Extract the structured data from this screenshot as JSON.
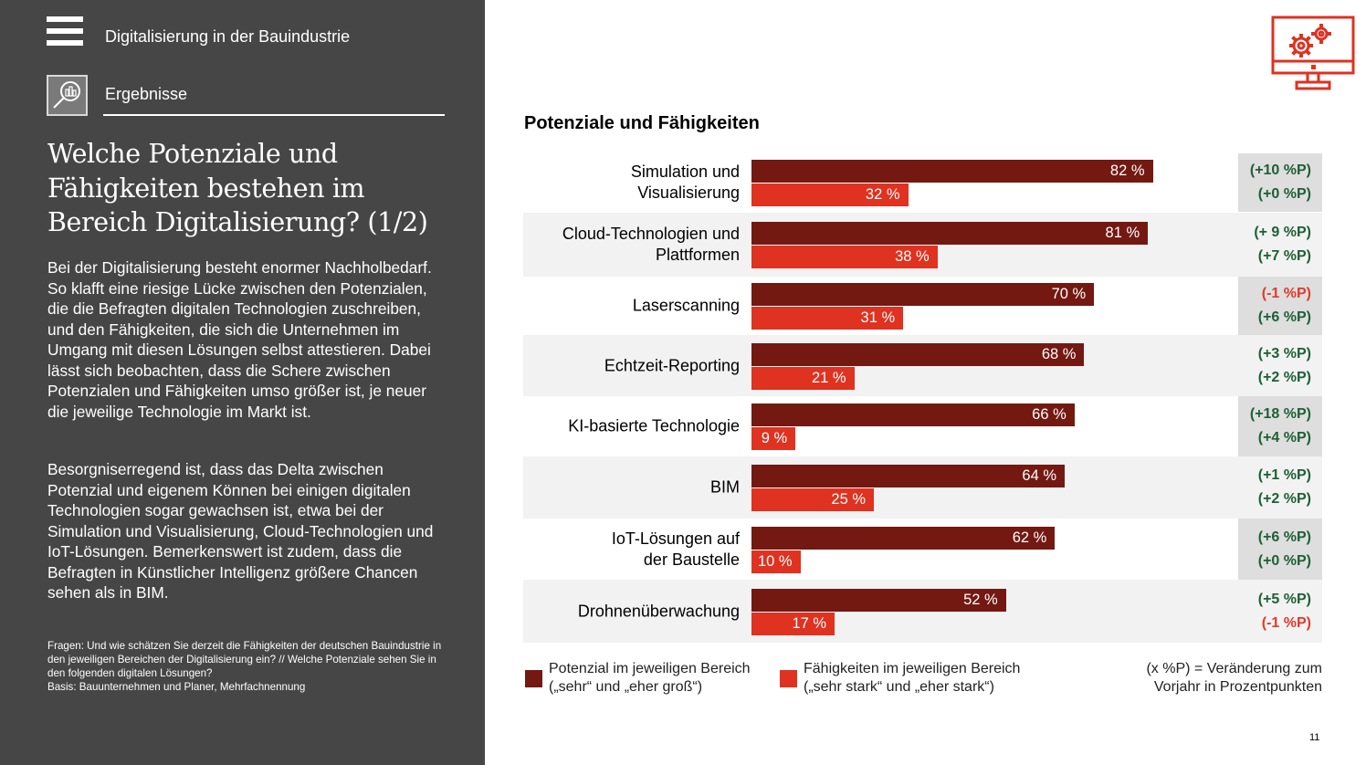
{
  "sidebar": {
    "app_title": "Digitalisierung in der Bauindustrie",
    "section_label": "Ergebnisse",
    "headline": "Welche Potenziale und Fähigkeiten bestehen im Bereich Digitalisierung? (1/2)",
    "headline_lines": [
      "Welche Potenziale und",
      "Fähigkeiten bestehen im",
      "Bereich Digitalisierung? (1/2)"
    ],
    "paragraph1": "Bei der Digitalisierung besteht enormer Nachholbedarf. So klafft eine riesige Lücke zwischen den Potenzialen, die die Befragten digitalen Technologien zuschreiben, und den Fähigkeiten, die sich die Unternehmen im Umgang mit diesen Lösungen selbst attestieren. Dabei lässt sich beobachten, dass die Schere zwischen Potenzialen und Fähigkeiten umso größer ist, je neuer die jeweilige Technologie im Markt ist.",
    "paragraph2": "Besorgniserregend ist, dass das Delta zwischen Potenzial und eigenem Können bei einigen digitalen Technologien sogar gewachsen ist, etwa bei der Simulation und Visualisierung, Cloud-Technologien und IoT-Lösungen. Bemerkenswert ist zudem, dass die Befragten in Künstlicher Intelligenz größere Chancen sehen als in BIM.",
    "footnote_questions": "Fragen: Und wie schätzen Sie derzeit die Fähigkeiten der deutschen Bauindustrie in den jeweiligen Bereichen der Digitalisierung ein? // Welche Potenziale sehen Sie in den folgenden digitalen Lösungen?",
    "footnote_basis": "Basis: Bauunternehmen und Planer, Mehrfachnennung",
    "icons": {
      "menu": "hamburger-menu-icon",
      "section": "magnifier-bar-chart-icon"
    }
  },
  "header_icon": "monitor-gears-icon",
  "colors": {
    "potenzial": "#731912",
    "faehigkeiten": "#df3220",
    "positive_delta": "#1e5f36",
    "negative_delta": "#e03a2c",
    "sidebar_bg": "#464646"
  },
  "chart_data": {
    "type": "bar",
    "orientation": "horizontal",
    "title": "Potenziale und Fähigkeiten",
    "xlabel": "",
    "ylabel": "",
    "xlim": [
      0,
      100
    ],
    "unit": "%",
    "grid": false,
    "categories": [
      "Simulation und Visualisierung",
      "Cloud-Technologien und Plattformen",
      "Laserscanning",
      "Echtzeit-Reporting",
      "KI-basierte Technologie",
      "BIM",
      "IoT-Lösungen auf der Baustelle",
      "Drohnenüberwachung"
    ],
    "category_lines": [
      [
        "Simulation und",
        "Visualisierung"
      ],
      [
        "Cloud-Technologien und",
        "Plattformen"
      ],
      [
        "Laserscanning"
      ],
      [
        "Echtzeit-Reporting"
      ],
      [
        "KI-basierte Technologie"
      ],
      [
        "BIM"
      ],
      [
        "IoT-Lösungen auf",
        "der Baustelle"
      ],
      [
        "Drohnenüberwachung"
      ]
    ],
    "series": [
      {
        "name": "Potenzial im jeweiligen Bereich („sehr“ und „eher groß“)",
        "values": [
          82,
          81,
          70,
          68,
          66,
          64,
          62,
          52
        ],
        "labels": [
          "82 %",
          "81 %",
          "70 %",
          "68 %",
          "66 %",
          "64 %",
          "62 %",
          "52 %"
        ],
        "changes": [
          "(+10 %P)",
          "(+ 9 %P)",
          "(-1 %P)",
          "(+3 %P)",
          "(+18 %P)",
          "(+1 %P)",
          "(+6 %P)",
          "(+5 %P)"
        ],
        "change_values": [
          10,
          9,
          -1,
          3,
          18,
          1,
          6,
          5
        ]
      },
      {
        "name": "Fähigkeiten im jeweiligen Bereich („sehr stark“ und „eher stark“)",
        "values": [
          32,
          38,
          31,
          21,
          9,
          25,
          10,
          17
        ],
        "labels": [
          "32 %",
          "38 %",
          "31 %",
          "21 %",
          "9 %",
          "25 %",
          "10 %",
          "17 %"
        ],
        "changes": [
          "(+0 %P)",
          "(+7 %P)",
          "(+6 %P)",
          "(+2 %P)",
          "(+4 %P)",
          "(+2 %P)",
          "(+0 %P)",
          "(-1 %P)"
        ],
        "change_values": [
          0,
          7,
          6,
          2,
          4,
          2,
          0,
          -1
        ]
      }
    ],
    "legend": {
      "placement": "bottom",
      "items": [
        {
          "line1": "Potenzial im jeweiligen Bereich",
          "line2": "(„sehr“ und „eher groß“)"
        },
        {
          "line1": "Fähigkeiten im jeweiligen Bereich",
          "line2": "(„sehr stark“ und „eher stark“)"
        }
      ],
      "note_line1": "(x %P) = Veränderung zum",
      "note_line2": "Vorjahr in Prozentpunkten"
    }
  },
  "page_number": "11"
}
